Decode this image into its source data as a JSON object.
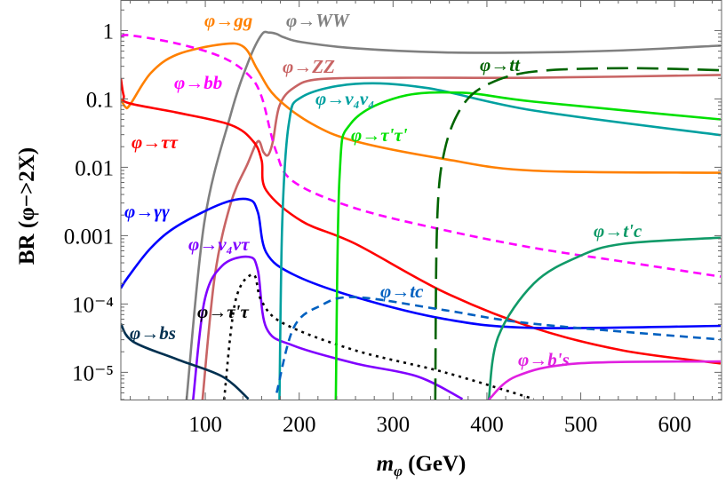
{
  "chart_data": {
    "type": "line",
    "title": "",
    "xlabel": "m_φ (GeV)",
    "xlabel_main": "m",
    "xlabel_sub": "φ",
    "xlabel_unit": "(GeV)",
    "ylabel": "BR (φ−>2X)",
    "xlim": [
      10,
      650
    ],
    "ylim": [
      4e-06,
      2.8
    ],
    "yscale": "log",
    "grid": false,
    "x_ticks": [
      {
        "value": 100,
        "label": "100"
      },
      {
        "value": 200,
        "label": "200"
      },
      {
        "value": 300,
        "label": "300"
      },
      {
        "value": 400,
        "label": "400"
      },
      {
        "value": 500,
        "label": "500"
      },
      {
        "value": 600,
        "label": "600"
      }
    ],
    "y_ticks": [
      {
        "value": 1,
        "label": "1"
      },
      {
        "value": 0.1,
        "label": "0.1"
      },
      {
        "value": 0.01,
        "label": "0.01"
      },
      {
        "value": 0.001,
        "label": "0.001"
      },
      {
        "value": 0.0001,
        "label": "10⁻⁴"
      },
      {
        "value": 1e-05,
        "label": "10⁻⁵"
      }
    ],
    "series": [
      {
        "name": "φ→WW",
        "color": "#808080",
        "style": "solid",
        "x": [
          80,
          99,
          127,
          146,
          160,
          168,
          176,
          184,
          203,
          260,
          355,
          450,
          545,
          649
        ],
        "log10y": [
          -5.4,
          -2.8,
          -1.23,
          -0.45,
          -0.06,
          -0.03,
          -0.05,
          -0.1,
          -0.17,
          -0.26,
          -0.32,
          -0.32,
          -0.29,
          -0.22
        ]
      },
      {
        "name": "φ→ZZ",
        "color": "#c86464",
        "style": "solid",
        "x": [
          97,
          110,
          127,
          145,
          156,
          162,
          167,
          172,
          179,
          194,
          222,
          307,
          450,
          649
        ],
        "log10y": [
          -5.4,
          -3.6,
          -2.53,
          -1.95,
          -1.62,
          -1.78,
          -1.82,
          -1.62,
          -1.1,
          -0.84,
          -0.71,
          -0.69,
          -0.69,
          -0.65
        ]
      },
      {
        "name": "φ→gg",
        "color": "#ff8000",
        "style": "solid",
        "x": [
          10,
          15,
          20,
          42,
          70,
          118,
          141,
          156,
          175,
          213,
          260,
          355,
          450,
          649
        ],
        "log10y": [
          -1.0,
          -1.12,
          -1.08,
          -0.62,
          -0.35,
          -0.2,
          -0.24,
          -0.58,
          -0.97,
          -1.36,
          -1.62,
          -1.88,
          -2.05,
          -2.08
        ]
      },
      {
        "name": "φ→bb",
        "color": "#ff00ff",
        "style": "dashed",
        "x": [
          10,
          20,
          70,
          118,
          146,
          160,
          175,
          194,
          260,
          355,
          450,
          545,
          649
        ],
        "log10y": [
          -0.09,
          -0.07,
          -0.19,
          -0.39,
          -0.65,
          -0.97,
          -1.75,
          -2.21,
          -2.6,
          -2.92,
          -3.18,
          -3.38,
          -3.6
        ]
      },
      {
        "name": "φ→ττ",
        "color": "#ff0000",
        "style": "solid",
        "x": [
          10,
          13,
          18,
          70,
          127,
          151,
          160,
          165,
          203,
          260,
          355,
          450,
          545,
          649
        ],
        "log10y": [
          -0.7,
          -0.95,
          -1.06,
          -1.2,
          -1.38,
          -1.62,
          -1.9,
          -2.34,
          -2.79,
          -3.12,
          -3.83,
          -4.35,
          -4.68,
          -4.87
        ]
      },
      {
        "name": "φ→γγ",
        "color": "#0000ff",
        "style": "solid",
        "x": [
          10,
          18,
          42,
          70,
          118,
          146,
          156,
          165,
          194,
          260,
          355,
          450,
          649
        ],
        "log10y": [
          -3.77,
          -3.6,
          -3.18,
          -2.86,
          -2.53,
          -2.47,
          -2.66,
          -3.25,
          -3.57,
          -3.9,
          -4.22,
          -4.35,
          -4.32
        ]
      },
      {
        "name": "φ→ν₄ν_τ",
        "color": "#8000ff",
        "style": "solid",
        "x": [
          87,
          99,
          118,
          146,
          156,
          165,
          194,
          260,
          326,
          374
        ],
        "log10y": [
          -5.4,
          -3.96,
          -3.44,
          -3.31,
          -3.51,
          -4.35,
          -4.61,
          -4.87,
          -5.06,
          -5.39
        ]
      },
      {
        "name": "φ→τ'τ",
        "color": "#000000",
        "style": "dotted",
        "x": [
          120,
          132,
          151,
          160,
          184,
          260,
          355,
          450
        ],
        "log10y": [
          -5.4,
          -3.96,
          -3.57,
          -3.96,
          -4.29,
          -4.68,
          -5.0,
          -5.39
        ]
      },
      {
        "name": "φ→bs",
        "color": "#003050",
        "style": "solid",
        "x": [
          10,
          23,
          70,
          118,
          146
        ],
        "log10y": [
          -4.29,
          -4.55,
          -4.81,
          -5.06,
          -5.39
        ]
      },
      {
        "name": "φ→ν₄ν₄",
        "color": "#00a0a0",
        "style": "solid",
        "x": [
          179,
          182,
          189,
          203,
          260,
          336,
          450,
          649
        ],
        "log10y": [
          -5.4,
          -2.79,
          -1.36,
          -0.97,
          -0.78,
          -0.84,
          -1.17,
          -1.53
        ]
      },
      {
        "name": "φ→τ'τ'",
        "color": "#00e000",
        "style": "solid",
        "x": [
          239,
          243,
          255,
          307,
          374,
          450,
          649
        ],
        "log10y": [
          -5.4,
          -2.14,
          -1.36,
          -0.97,
          -0.91,
          -1.04,
          -1.3
        ]
      },
      {
        "name": "φ→tt",
        "color": "#006400",
        "style": "longdash",
        "x": [
          345,
          347,
          355,
          374,
          402,
          450,
          545,
          649
        ],
        "log10y": [
          -5.4,
          -2.79,
          -1.75,
          -1.1,
          -0.78,
          -0.6,
          -0.55,
          -0.58
        ]
      },
      {
        "name": "φ→t'c",
        "color": "#109a68",
        "style": "solid",
        "x": [
          402,
          412,
          450,
          497,
          545,
          649
        ],
        "log10y": [
          -5.4,
          -4.48,
          -3.7,
          -3.31,
          -3.12,
          -3.03
        ]
      },
      {
        "name": "φ→tc",
        "color": "#0060c0",
        "style": "dashed",
        "x": [
          176,
          194,
          222,
          260,
          355,
          450,
          649
        ],
        "log10y": [
          -5.3,
          -4.35,
          -4.03,
          -3.9,
          -4.09,
          -4.29,
          -4.52
        ]
      },
      {
        "name": "φ→b's",
        "color": "#e020e0",
        "style": "solid",
        "x": [
          402,
          431,
          497,
          649
        ],
        "log10y": [
          -5.4,
          -5.06,
          -4.87,
          -4.84
        ]
      }
    ]
  }
}
